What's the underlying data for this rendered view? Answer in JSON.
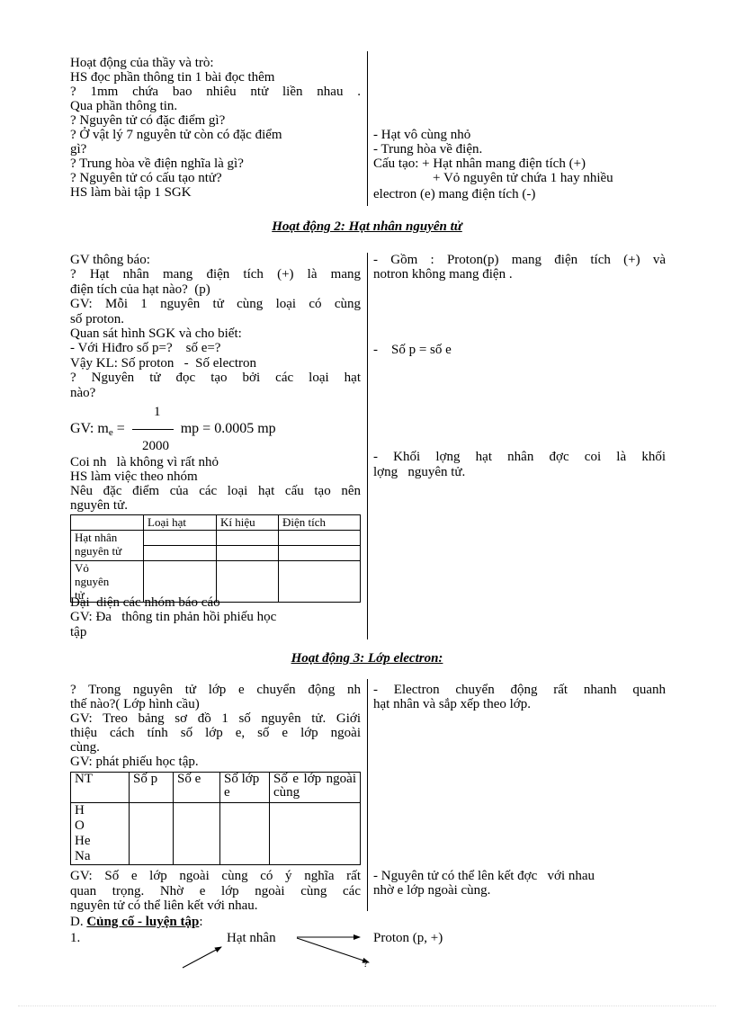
{
  "section1": {
    "left": [
      "Hoạt động của thầy và trò:",
      "HS đọc phần thông tin 1 bài đọc thêm",
      "? 1mm chứa bao nhiêu ntử liền nhau .",
      "Qua phần thông tin.",
      "? Nguyên tử có đặc điểm gì?",
      "? Ở vật lý 7 nguyên tử còn có đặc điểm",
      "gì?",
      "? Trung hòa về điện nghĩa là gì?",
      "? Nguyên tử có cấu tạo ntử?",
      "HS làm bài tập 1 SGK"
    ],
    "right": [
      "- Hạt vô cùng nhỏ",
      "- Trung hòa về điện.",
      "Cấu tạo: + Hạt nhân mang điện tích (+)",
      "+ Vỏ nguyên tử chứa 1 hay nhiều",
      "electron (e) mang điện tích (-)"
    ]
  },
  "heading2": "Hoạt động 2: Hạt nhân nguyên tử",
  "section2": {
    "left": [
      "GV thông báo:",
      "? Hạt nhân mang điện tích (+) là mang",
      "điện tích của hạt nào?  (p)",
      "GV: Mỗi 1 nguyên tử cùng loại có cùng",
      "số proton.",
      "Quan sát hình SGK và cho biết:",
      "- Với Hiđro số p=?    số e=?",
      "Vậy KL: Số proton   -  Số electron",
      "? Nguyên tử đọc   tạo bởi các loại hạt",
      "nào?"
    ],
    "formula": {
      "prefix": "GV: m",
      "sub": "e",
      "eq": "=",
      "numerator": "1",
      "denominator": "2000",
      "rest": "mp = 0.0005 mp"
    },
    "left2": [
      "Coi nh   là không vì rất nhỏ",
      "HS làm việc theo nhóm",
      "Nêu đặc điểm của các loại hạt cấu tạo nên",
      "nguyên tử."
    ],
    "table": {
      "headers": [
        "",
        "Loại hạt",
        "Kí hiệu",
        "Điện tích"
      ],
      "row_labels": [
        "Hạt  nhân nguyên tử",
        "Vỏ nguyên tử"
      ]
    },
    "left3": [
      "Đại  diện các nhóm báo cáo",
      "GV: Đa   thông tin phản hồi phiếu học",
      "tập"
    ],
    "right": [
      "- Gồm : Proton(p) mang điện tích (+) và",
      "notron không mang điện .",
      "-    Số p = số e",
      "- Khối lợng   hạt nhân đợc   coi là khối",
      "lợng   nguyên tử."
    ]
  },
  "heading3": "Hoạt động 3: Lớp electron:",
  "section3": {
    "left": [
      "? Trong nguyên tử lớp e chuyển động nh",
      "thế nào?( Lớp hình cầu)",
      "GV: Treo bảng sơ đồ 1 số nguyên tử. Giới",
      "thiệu cách tính số lớp e, số e lớp ngoài",
      "cùng.",
      "GV: phát phiếu học tập."
    ],
    "table": {
      "headers": [
        "NT",
        "Số p",
        "Số e",
        "Số lớp e",
        "Số  e  lớp ngoài cùng"
      ],
      "elements": [
        "H",
        "O",
        "He",
        "Na"
      ]
    },
    "left2": [
      "GV: Số e lớp ngoài cùng có ý nghĩa rất",
      "quan trọng. Nhờ e lớp ngoài cùng các",
      "nguyên tử có thể liên kết với nhau."
    ],
    "right": [
      "- Electron chuyển động rất nhanh quanh",
      "hạt nhân và sắp xếp theo lớp.",
      "- Nguyên tử có thể lên kết đợc   với nhau",
      "nhờ e lớp ngoài cùng."
    ]
  },
  "consolidation": {
    "prefix": "D. ",
    "title": "Củng cố - luyện tập",
    "colon": ":",
    "item_number": "1.",
    "node_center": "Hạt nhân",
    "node_right": "Proton (p, +)",
    "node_bottom_right": "?"
  }
}
